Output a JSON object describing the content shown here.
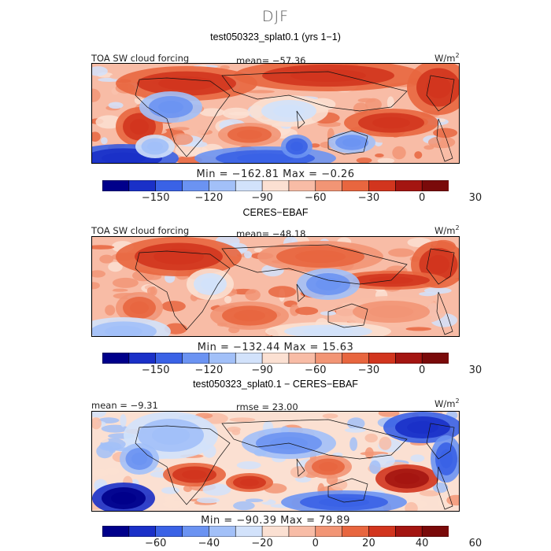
{
  "season": "DJF",
  "palette": [
    "#00008b",
    "#1a30c8",
    "#3a62e6",
    "#6b93f2",
    "#a2c0f8",
    "#d2e2fb",
    "#fbe0d2",
    "#f8bca6",
    "#f29575",
    "#e8663f",
    "#d2351e",
    "#a41511",
    "#7a0a0a"
  ],
  "panels": [
    {
      "title": "test050323_splat0.1 (yrs 1-1)",
      "left_label": "TOA SW cloud forcing",
      "center_label": "mean=  -57.36",
      "unit": "W/m",
      "unit_exp": "2",
      "stats": "Min  =  -162.81  Max  =    -0.26",
      "ticks": [
        "-150",
        "-120",
        "-90",
        "-60",
        "-30",
        "0",
        "30"
      ]
    },
    {
      "title": "CERES-EBAF",
      "left_label": "TOA SW cloud forcing",
      "center_label": "mean=  -48.18",
      "unit": "W/m",
      "unit_exp": "2",
      "stats": "Min  =  -132.44  Max  =    15.63",
      "ticks": [
        "-150",
        "-120",
        "-90",
        "-60",
        "-30",
        "0",
        "30"
      ]
    },
    {
      "title": "test050323_splat0.1 - CERES-EBAF",
      "left_label": "mean  =   -9.31",
      "center_label": "rmse  =   23.00",
      "unit": "W/m",
      "unit_exp": "2",
      "stats": "Min  =  -90.39  Max  =    79.89",
      "ticks": [
        "-60",
        "-40",
        "-20",
        "0",
        "20",
        "40",
        "60"
      ]
    }
  ]
}
